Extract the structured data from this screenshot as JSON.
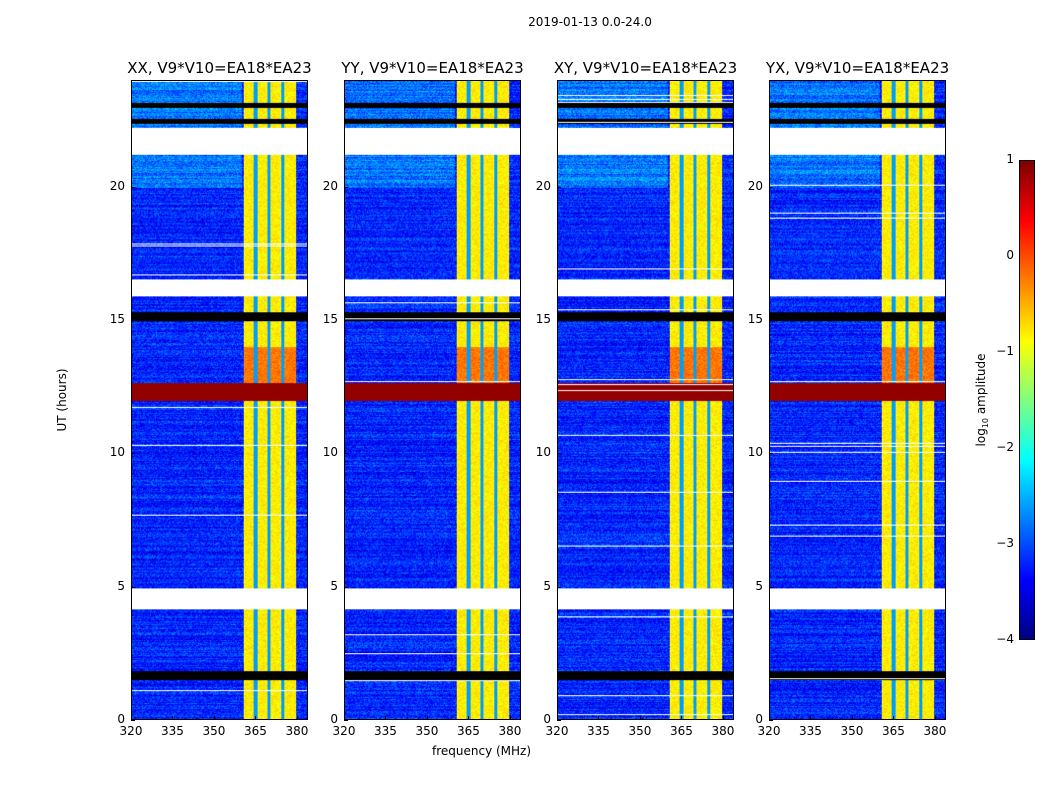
{
  "chart_data": {
    "type": "heatmap",
    "title": "2019-01-13 0.0-24.0",
    "panels": [
      {
        "title": "XX, V9*V10=EA18*EA23"
      },
      {
        "title": "YY, V9*V10=EA18*EA23"
      },
      {
        "title": "XY, V9*V10=EA18*EA23"
      },
      {
        "title": "YX, V9*V10=EA18*EA23"
      }
    ],
    "xlabel": "frequency (MHz)",
    "ylabel": "UT (hours)",
    "xlim": [
      320,
      384
    ],
    "ylim": [
      0,
      24
    ],
    "xticks": [
      "320",
      "335",
      "350",
      "365",
      "380"
    ],
    "xtick_values": [
      320,
      335,
      350,
      365,
      380
    ],
    "yticks": [
      "0",
      "5",
      "10",
      "15",
      "20"
    ],
    "ytick_values": [
      0,
      5,
      10,
      15,
      20
    ],
    "colorbar": {
      "label": "log10 amplitude",
      "label_main": "log",
      "label_sub": "10",
      "label_rest": " amplitude",
      "range": [
        -4,
        1
      ],
      "ticks": [
        "1",
        "0",
        "−1",
        "−2",
        "−3",
        "−4"
      ],
      "tick_values": [
        1,
        0,
        -1,
        -2,
        -3,
        -4
      ],
      "colormap": "jet"
    },
    "background_level": -3.2,
    "rfi_band_mhz": [
      360.5,
      380
    ],
    "rfi_band_level": -0.8,
    "rfi_gaps_mhz": [
      365,
      370,
      375
    ],
    "flagged_hours": [
      [
        21.25,
        22.25
      ],
      [
        15.9,
        16.55
      ],
      [
        4.15,
        4.95
      ]
    ],
    "strong_rfi_hours": [
      12.0,
      12.65
    ],
    "dropout_hours": [
      [
        1.5,
        1.8
      ],
      [
        15.0,
        15.3
      ],
      [
        22.4,
        22.6
      ],
      [
        23.0,
        23.2
      ]
    ]
  }
}
